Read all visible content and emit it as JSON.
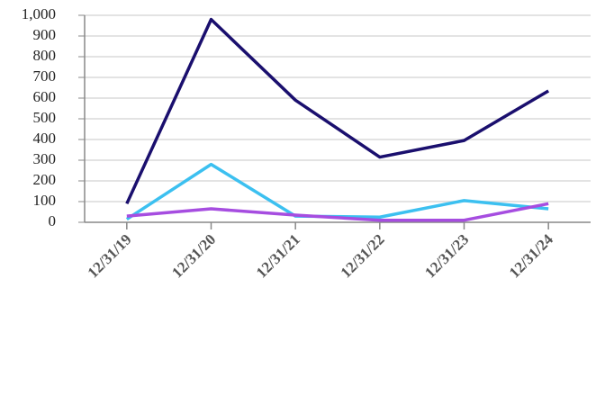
{
  "chart_data": {
    "type": "line",
    "categories": [
      "12/31/19",
      "12/31/20",
      "12/31/21",
      "12/31/22",
      "12/31/23",
      "12/31/24"
    ],
    "series": [
      {
        "color": "#1a0f6e",
        "values": [
          90,
          980,
          590,
          315,
          395,
          635
        ]
      },
      {
        "color": "#3cc0f0",
        "values": [
          15,
          280,
          30,
          25,
          105,
          65
        ]
      },
      {
        "color": "#a64de0",
        "values": [
          30,
          65,
          35,
          10,
          10,
          90
        ]
      }
    ],
    "ylim": [
      0,
      1000
    ],
    "yticks": [
      0,
      100,
      200,
      300,
      400,
      500,
      600,
      700,
      800,
      900,
      {
        "value": 1000,
        "label": "1,000"
      }
    ],
    "grid": true
  }
}
